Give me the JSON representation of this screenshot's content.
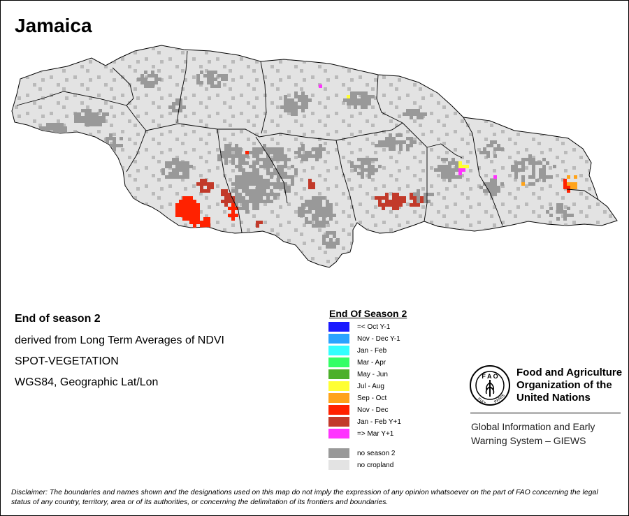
{
  "title": "Jamaica",
  "info": {
    "heading": "End of season 2",
    "line1": "derived from Long Term Averages of NDVI",
    "line2": "SPOT-VEGETATION",
    "line3": "WGS84, Geographic Lat/Lon"
  },
  "legend": {
    "title": "End Of Season 2",
    "items": [
      {
        "label": "=< Oct Y-1",
        "color": "#1a1aff"
      },
      {
        "label": "Nov - Dec Y-1",
        "color": "#2aa3ff"
      },
      {
        "label": "Jan - Feb",
        "color": "#33ffff"
      },
      {
        "label": "Mar - Apr",
        "color": "#33ff66"
      },
      {
        "label": "May - Jun",
        "color": "#4cb02a"
      },
      {
        "label": "Jul - Aug",
        "color": "#ffff33"
      },
      {
        "label": "Sep - Oct",
        "color": "#ffa31a"
      },
      {
        "label": "Nov - Dec",
        "color": "#ff2200"
      },
      {
        "label": "Jan - Feb Y+1",
        "color": "#c23a2a"
      },
      {
        "label": "=> Mar Y+1",
        "color": "#ff33ff"
      },
      {
        "label": "no season 2",
        "color": "#999999"
      },
      {
        "label": "no cropland",
        "color": "#e3e3e3"
      }
    ]
  },
  "organization": {
    "line1": "Food and Agriculture",
    "line2": "Organization of the",
    "line3": "United Nations",
    "logo_text": "FAO FIAT PANIS"
  },
  "program": {
    "line1": "Global Information and Early",
    "line2": "Warning System – GIEWS"
  },
  "disclaimer": "Disclaimer: The boundaries and names shown and the designations used on this map do not imply the expression of any opinion whatsoever on the part of FAO concerning the legal status of any country, territory, area or of its authorities, or concerning the delimitation of its frontiers and boundaries.",
  "colors": {
    "land": "#e3e3e3",
    "no_season": "#999999",
    "boundary": "#000000"
  }
}
